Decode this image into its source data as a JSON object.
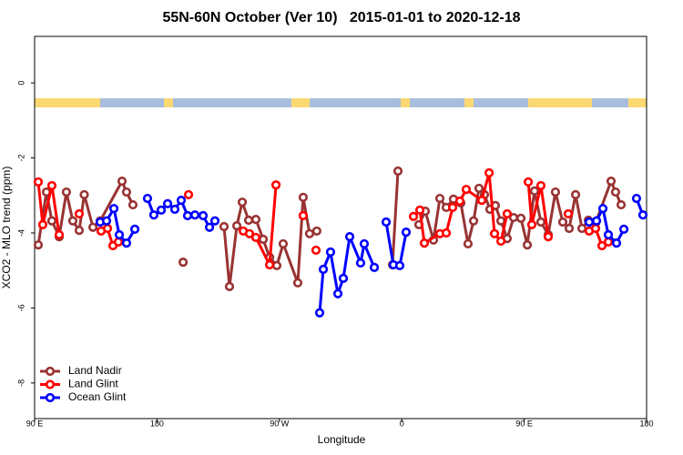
{
  "chart_data": {
    "type": "line",
    "title": "55N-60N October (Ver 10)   2015-01-01 to 2020-12-18",
    "xlabel": "Longitude",
    "ylabel": "XCO2 - MLO trend (ppm)",
    "xlim": [
      90,
      540
    ],
    "ylim": [
      -8.95,
      1.24
    ],
    "xticks": [
      {
        "value": 90,
        "label": "90 E"
      },
      {
        "value": 180,
        "label": "180"
      },
      {
        "value": 270,
        "label": "90 W"
      },
      {
        "value": 360,
        "label": "0"
      },
      {
        "value": 450,
        "label": "90 E"
      },
      {
        "value": 540,
        "label": "180"
      }
    ],
    "yticks": [
      0,
      -2,
      -4,
      -6,
      -8
    ],
    "legend": "bottom-left",
    "series": [
      {
        "name": "Land Nadir",
        "color": "#993333",
        "x": [
          92.7,
          98.7,
          102.7,
          108.1,
          113.4,
          118.1,
          122.8,
          126.5,
          132.9,
          138.2,
          154.3,
          157.6,
          162.3,
          null,
          199.2,
          null,
          229.3,
          233.3,
          238.7,
          242.7,
          247.4,
          252.7,
          258.1,
          262.8,
          268.1,
          272.8,
          283.5,
          287.5,
          292.2,
          297.5,
          null,
          353.2,
          357.2,
          null,
          372.6,
          377.3,
          383.3,
          388.0,
          392.7,
          398.0,
          403.4,
          408.7,
          412.8,
          416.8,
          420.8,
          424.8,
          428.8,
          432.9,
          437.5,
          442.2,
          447.6,
          452.3,
          457.6,
          462.3,
          467.7,
          473.0,
          478.4,
          483.1,
          487.8,
          492.5,
          497.2,
          502.5,
          513.9,
          517.2,
          521.3
        ],
        "values": [
          -4.32,
          -2.91,
          -3.68,
          -4.1,
          -2.91,
          -3.68,
          -3.93,
          -2.98,
          -3.85,
          -3.68,
          -2.62,
          -2.91,
          -3.25,
          null,
          -4.78,
          null,
          -3.83,
          -5.43,
          -3.81,
          -3.18,
          -3.66,
          -3.64,
          -4.17,
          -4.65,
          -4.87,
          -4.29,
          -5.33,
          -3.05,
          -4.02,
          -3.95,
          null,
          -4.85,
          -2.35,
          null,
          -3.78,
          -3.42,
          -4.19,
          -3.08,
          -3.32,
          -3.1,
          -3.2,
          -4.29,
          -3.68,
          -2.81,
          -2.98,
          -3.37,
          -3.27,
          -3.68,
          -4.15,
          -3.59,
          -3.61,
          -4.32,
          -2.88,
          -3.71,
          -4.05,
          -2.91,
          -3.71,
          -3.88,
          -2.98,
          -3.88,
          -3.66,
          -3.73,
          -2.62,
          -2.91,
          -3.25
        ]
      },
      {
        "name": "Land Glint",
        "color": "#ff0000",
        "x": [
          92.7,
          96.0,
          102.7,
          108.1,
          null,
          122.8,
          null,
          138.9,
          143.6,
          147.6,
          151.6,
          null,
          203.2,
          null,
          243.4,
          248.0,
          252.7,
          262.8,
          267.5,
          null,
          287.5,
          null,
          296.9,
          null,
          368.6,
          373.3,
          376.6,
          388.0,
          392.7,
          397.4,
          402.7,
          407.4,
          418.8,
          424.2,
          428.2,
          432.9,
          437.5,
          null,
          453.0,
          455.6,
          462.3,
          467.7,
          null,
          482.4,
          null,
          497.8,
          502.5,
          507.2,
          511.9
        ],
        "values": [
          -2.64,
          -3.78,
          -2.74,
          -4.05,
          null,
          -3.49,
          null,
          -3.95,
          -3.88,
          -4.34,
          -4.24,
          null,
          -2.98,
          null,
          -3.95,
          -4.02,
          -4.12,
          -4.85,
          -2.72,
          null,
          -3.54,
          null,
          -4.46,
          null,
          -3.56,
          -3.39,
          -4.27,
          -4.02,
          -4.0,
          -3.32,
          -3.15,
          -2.84,
          -3.13,
          -2.4,
          -4.02,
          -4.22,
          -3.49,
          null,
          -2.64,
          -3.78,
          -2.74,
          -4.1,
          null,
          -3.49,
          null,
          -3.95,
          -3.88,
          -4.34,
          -4.24
        ]
      },
      {
        "name": "Ocean Glint",
        "color": "#0000ff",
        "x": [
          138.2,
          142.9,
          148.3,
          152.3,
          157.6,
          163.7,
          null,
          173.0,
          177.7,
          183.1,
          187.8,
          193.1,
          197.8,
          202.5,
          207.9,
          213.9,
          218.6,
          222.6,
          null,
          299.6,
          302.3,
          307.6,
          313.0,
          317.0,
          321.7,
          329.7,
          332.4,
          339.8,
          null,
          348.5,
          353.8,
          358.5,
          363.2,
          null,
          497.8,
          503.2,
          507.9,
          511.9,
          517.9,
          523.3,
          null,
          532.6,
          537.3
        ],
        "values": [
          -3.71,
          -3.68,
          -3.35,
          -4.05,
          -4.27,
          -3.9,
          null,
          -3.08,
          -3.52,
          -3.39,
          -3.22,
          -3.37,
          -3.13,
          -3.54,
          -3.52,
          -3.54,
          -3.85,
          -3.68,
          null,
          -6.13,
          -4.97,
          -4.51,
          -5.62,
          -5.21,
          -4.1,
          -4.8,
          -4.29,
          -4.92,
          null,
          -3.71,
          -4.85,
          -4.87,
          -3.98,
          null,
          -3.71,
          -3.68,
          -3.35,
          -4.05,
          -4.27,
          -3.9,
          null,
          -3.08,
          -3.52
        ]
      }
    ]
  }
}
